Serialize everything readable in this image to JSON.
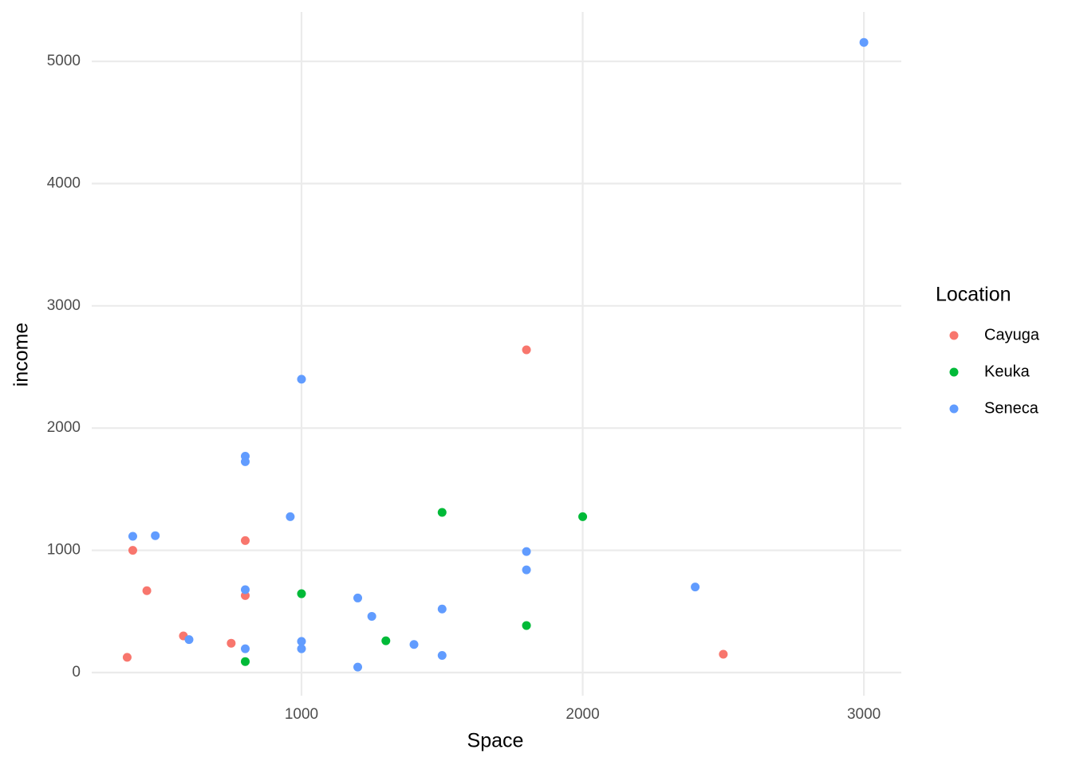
{
  "chart_data": {
    "type": "scatter",
    "x_label": "Space",
    "y_label": "income",
    "legend_title": "Location",
    "xlim": [
      254,
      3133
    ],
    "ylim": [
      -189,
      5404
    ],
    "xticks": [
      1000,
      2000,
      3000
    ],
    "yticks": [
      0,
      1000,
      2000,
      3000,
      4000,
      5000
    ],
    "grid": true,
    "legend": "right",
    "series": [
      {
        "name": "Cayuga",
        "color": "#F8766D",
        "x": [
          380,
          400,
          450,
          580,
          750,
          800,
          800,
          1800,
          2500
        ],
        "values": [
          125,
          1000,
          670,
          300,
          240,
          1080,
          630,
          2640,
          150
        ]
      },
      {
        "name": "Keuka",
        "color": "#00BA38",
        "x": [
          800,
          1000,
          1300,
          1500,
          1800,
          2000
        ],
        "values": [
          90,
          645,
          260,
          1310,
          385,
          1275
        ]
      },
      {
        "name": "Seneca",
        "color": "#619CFF",
        "x": [
          400,
          480,
          600,
          800,
          800,
          800,
          800,
          960,
          1000,
          1000,
          1000,
          1200,
          1200,
          1250,
          1400,
          1500,
          1500,
          1800,
          1800,
          2400,
          3000
        ],
        "values": [
          1115,
          1120,
          270,
          1770,
          1725,
          678,
          195,
          1275,
          2400,
          255,
          195,
          610,
          45,
          460,
          230,
          520,
          140,
          990,
          840,
          700,
          5155
        ]
      }
    ]
  }
}
